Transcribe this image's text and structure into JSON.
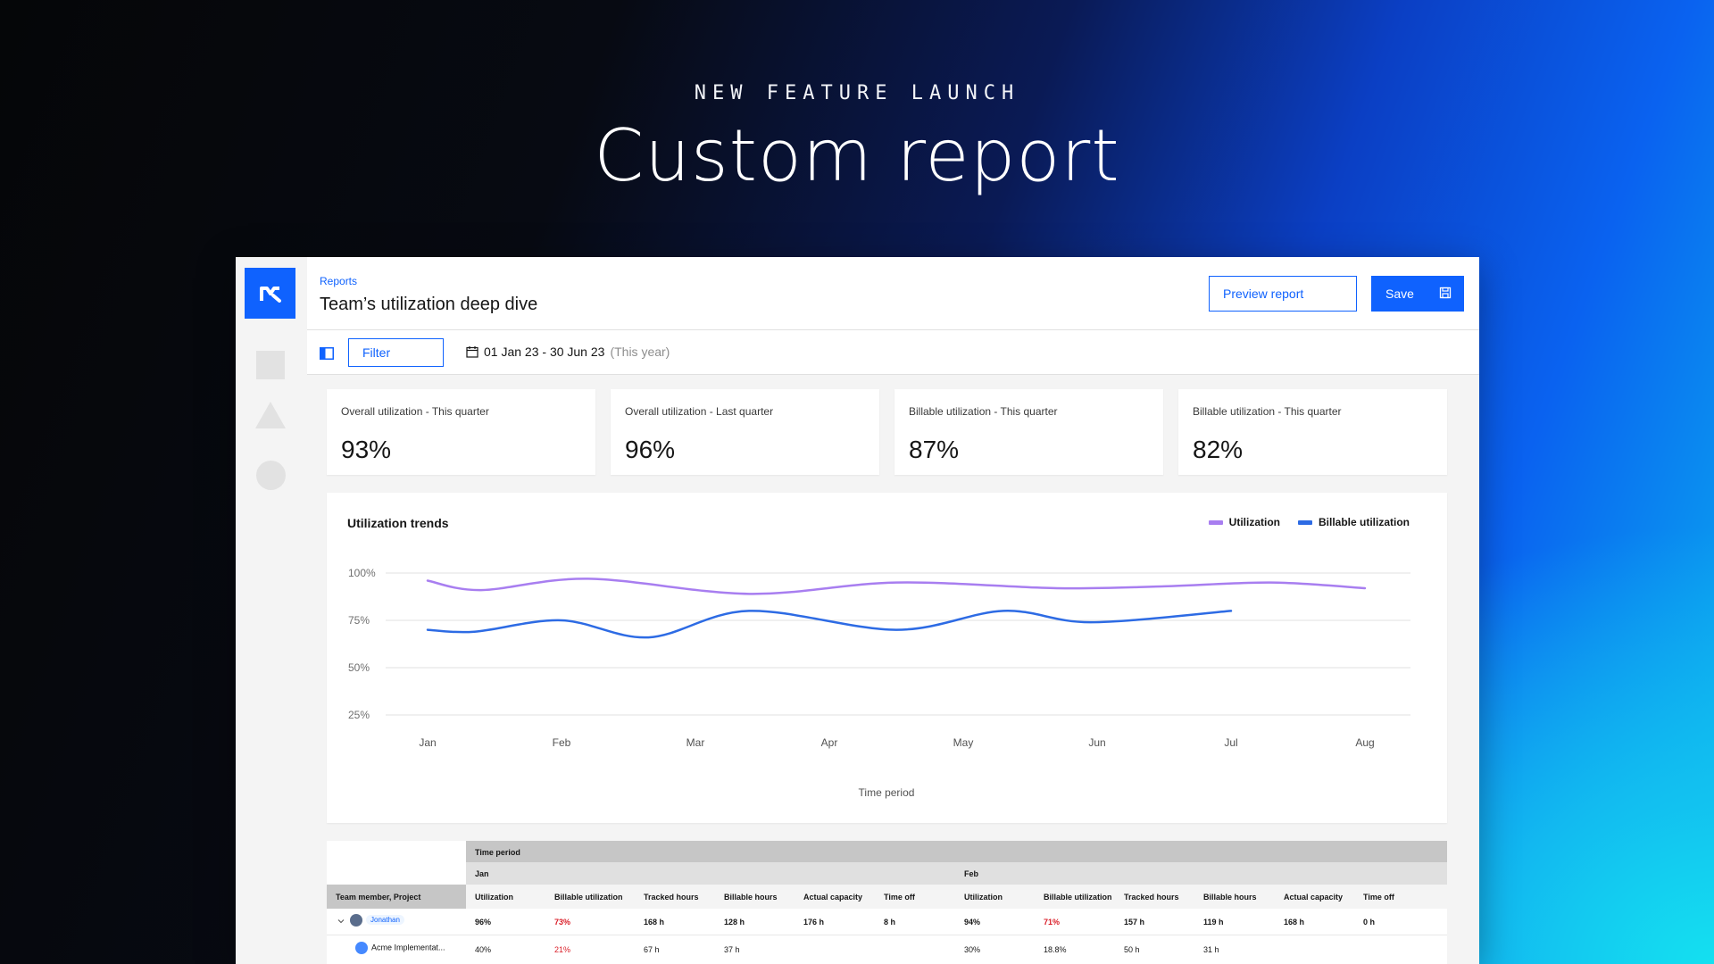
{
  "hero": {
    "eyebrow": "NEW FEATURE LAUNCH",
    "headline": "Custom report"
  },
  "header": {
    "breadcrumb": "Reports",
    "title": "Team’s utilization deep dive",
    "preview_label": "Preview report",
    "save_label": "Save"
  },
  "toolbar": {
    "filter_label": "Filter",
    "date_range": "01 Jan 23 - 30 Jun 23",
    "date_hint": "(This year)"
  },
  "kpis": [
    {
      "label": "Overall utilization - This quarter",
      "value": "93%"
    },
    {
      "label": "Overall utilization - Last quarter",
      "value": "96%"
    },
    {
      "label": "Billable utilization - This quarter",
      "value": "87%"
    },
    {
      "label": "Billable utilization - This quarter",
      "value": "82%"
    }
  ],
  "colors": {
    "accent": "#0f62fe",
    "utilization": "#a87ef0",
    "billable": "#2d6be4",
    "negative": "#da1e28"
  },
  "chart_data": {
    "type": "line",
    "title": "Utilization trends",
    "xlabel": "Time period",
    "ylabel": "",
    "categories": [
      "Jan",
      "Feb",
      "Mar",
      "Apr",
      "May",
      "Jun",
      "Jul",
      "Aug"
    ],
    "y_ticks": [
      "100%",
      "75%",
      "50%",
      "25%"
    ],
    "ylim": [
      25,
      100
    ],
    "legend_position": "top-right",
    "grid": true,
    "series": [
      {
        "name": "Utilization",
        "color": "#a87ef0",
        "x": [
          0,
          0.4,
          1.2,
          2.4,
          3.5,
          4.7,
          5.5,
          6.3,
          7.0
        ],
        "values": [
          96,
          91,
          97,
          89,
          95,
          92,
          93,
          95,
          92
        ]
      },
      {
        "name": "Billable utilization",
        "color": "#2d6be4",
        "x": [
          0,
          0.35,
          1.0,
          1.65,
          2.4,
          3.5,
          4.3,
          4.95,
          6.0
        ],
        "values": [
          70,
          69,
          75,
          66,
          80,
          70,
          80,
          74,
          80
        ]
      }
    ]
  },
  "table": {
    "time_period_label": "Time period",
    "month_1": "Jan",
    "month_2": "Feb",
    "member_header": "Team member, Project",
    "columns": [
      "Utilization",
      "Billable utilization",
      "Tracked hours",
      "Billable hours",
      "Actual capacity",
      "Time off"
    ],
    "rows": [
      {
        "name": "Jonathan",
        "jan": [
          "96%",
          "73%",
          "168 h",
          "128 h",
          "176 h",
          "8 h"
        ],
        "feb": [
          "94%",
          "71%",
          "157 h",
          "119 h",
          "168 h",
          "0 h"
        ]
      },
      {
        "name": "Acme Implementat...",
        "jan": [
          "40%",
          "21%",
          "67 h",
          "37 h",
          "",
          ""
        ],
        "feb": [
          "30%",
          "18.8%",
          "50 h",
          "31 h",
          "",
          ""
        ]
      }
    ]
  }
}
